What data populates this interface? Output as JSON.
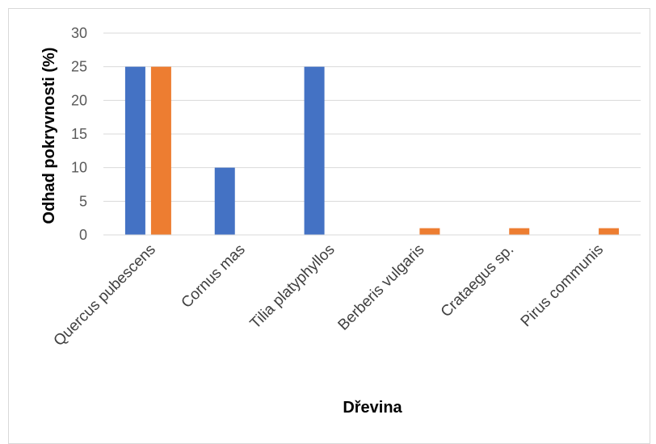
{
  "chart_data": {
    "type": "bar",
    "title": "",
    "xlabel": "Dřevina",
    "ylabel": "Odhad pokryvnosti (%)",
    "ylim": [
      0,
      30
    ],
    "yticks": [
      0,
      5,
      10,
      15,
      20,
      25,
      30
    ],
    "grid": true,
    "legend": "none",
    "categories": [
      "Quercus pubescens",
      "Cornus mas",
      "Tilia platyphyllos",
      "Berberis vulgaris",
      "Crataegus sp.",
      "Pirus communis"
    ],
    "series": [
      {
        "color": "#4472C4",
        "values": [
          25,
          10,
          25,
          0,
          0,
          0
        ]
      },
      {
        "color": "#ED7D31",
        "values": [
          25,
          0,
          0,
          1,
          1,
          1
        ]
      }
    ]
  }
}
